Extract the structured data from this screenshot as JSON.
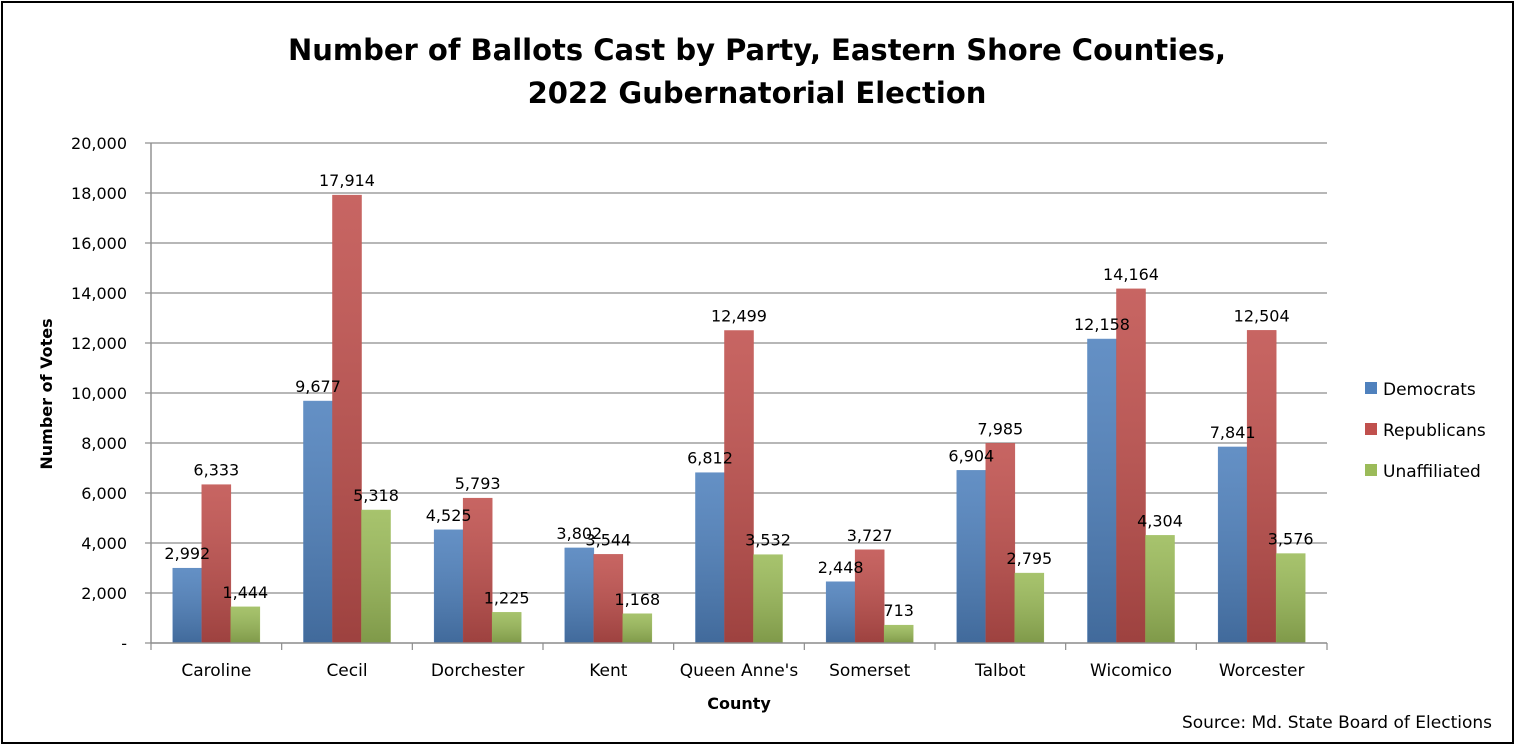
{
  "chart_data": {
    "type": "bar",
    "title_lines": [
      "Number of Ballots Cast by Party, Eastern Shore Counties,",
      "2022 Gubernatorial Election"
    ],
    "xlabel": "County",
    "ylabel": "Number of Votes",
    "ylim": [
      0,
      20000
    ],
    "yticks": [
      {
        "value": 0,
        "label": "-"
      },
      {
        "value": 2000,
        "label": "2,000"
      },
      {
        "value": 4000,
        "label": "4,000"
      },
      {
        "value": 6000,
        "label": "6,000"
      },
      {
        "value": 8000,
        "label": "8,000"
      },
      {
        "value": 10000,
        "label": "10,000"
      },
      {
        "value": 12000,
        "label": "12,000"
      },
      {
        "value": 14000,
        "label": "14,000"
      },
      {
        "value": 16000,
        "label": "16,000"
      },
      {
        "value": 18000,
        "label": "18,000"
      },
      {
        "value": 20000,
        "label": "20,000"
      }
    ],
    "grid": true,
    "legend_position": "right",
    "categories": [
      "Caroline",
      "Cecil",
      "Dorchester",
      "Kent",
      "Queen Anne's",
      "Somerset",
      "Talbot",
      "Wicomico",
      "Worcester"
    ],
    "series": [
      {
        "name": "Democrats",
        "color": "#4F81BD",
        "values": [
          2992,
          9677,
          4525,
          3802,
          6812,
          2448,
          6904,
          12158,
          7841
        ],
        "labels": [
          "2,992",
          "9,677",
          "4,525",
          "3,802",
          "6,812",
          "2,448",
          "6,904",
          "12,158",
          "7,841"
        ]
      },
      {
        "name": "Republicans",
        "color": "#C0504D",
        "values": [
          6333,
          17914,
          5793,
          3544,
          12499,
          3727,
          7985,
          14164,
          12504
        ],
        "labels": [
          "6,333",
          "17,914",
          "5,793",
          "3,544",
          "12,499",
          "3,727",
          "7,985",
          "14,164",
          "12,504"
        ]
      },
      {
        "name": "Unaffiliated",
        "color": "#9BBB59",
        "values": [
          1444,
          5318,
          1225,
          1168,
          3532,
          713,
          2795,
          4304,
          3576
        ],
        "labels": [
          "1,444",
          "5,318",
          "1,225",
          "1,168",
          "3,532",
          "713",
          "2,795",
          "4,304",
          "3,576"
        ]
      }
    ],
    "source": "Source:  Md. State Board of Elections"
  }
}
